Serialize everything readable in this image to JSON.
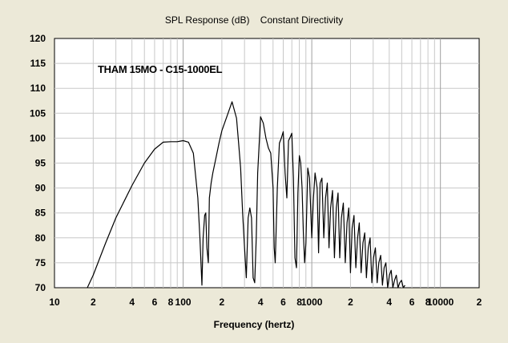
{
  "chart_data": {
    "type": "line",
    "title": "SPL Response (dB)    Constant Directivity",
    "annotation": "THAM 15MO - C15-1000EL",
    "xlabel": "Frequency (hertz)",
    "ylabel": "",
    "x_scale": "log",
    "xlim": [
      10,
      20000
    ],
    "ylim": [
      70,
      120
    ],
    "grid": true,
    "legend": "none",
    "x_tick_labels": [
      {
        "value": 10,
        "label": "10"
      },
      {
        "value": 20,
        "label": "2"
      },
      {
        "value": 40,
        "label": "4"
      },
      {
        "value": 60,
        "label": "6"
      },
      {
        "value": 80,
        "label": "8"
      },
      {
        "value": 100,
        "label": "100"
      },
      {
        "value": 200,
        "label": "2"
      },
      {
        "value": 400,
        "label": "4"
      },
      {
        "value": 600,
        "label": "6"
      },
      {
        "value": 800,
        "label": "8"
      },
      {
        "value": 1000,
        "label": "1000"
      },
      {
        "value": 2000,
        "label": "2"
      },
      {
        "value": 4000,
        "label": "4"
      },
      {
        "value": 6000,
        "label": "6"
      },
      {
        "value": 8000,
        "label": "8"
      },
      {
        "value": 10000,
        "label": "10000"
      },
      {
        "value": 20000,
        "label": "2"
      }
    ],
    "y_ticks": [
      70,
      75,
      80,
      85,
      90,
      95,
      100,
      105,
      110,
      115,
      120
    ],
    "colors": {
      "background": "#ece9d8",
      "plot_area": "#ffffff",
      "line": "#000000",
      "grid": "#c8c8c8"
    },
    "series": [
      {
        "name": "",
        "x": [
          18,
          20,
          25,
          30,
          35,
          40,
          50,
          60,
          70,
          80,
          90,
          95,
          100,
          110,
          120,
          130,
          135,
          140,
          143,
          147,
          150,
          153,
          157,
          160,
          165,
          170,
          180,
          190,
          200,
          220,
          240,
          260,
          270,
          280,
          290,
          300,
          310,
          320,
          330,
          340,
          350,
          360,
          370,
          380,
          400,
          420,
          440,
          460,
          480,
          500,
          510,
          520,
          540,
          560,
          580,
          600,
          620,
          640,
          660,
          680,
          700,
          720,
          740,
          760,
          780,
          800,
          820,
          840,
          860,
          880,
          900,
          930,
          960,
          1000,
          1030,
          1060,
          1100,
          1130,
          1160,
          1200,
          1240,
          1280,
          1320,
          1360,
          1400,
          1450,
          1500,
          1550,
          1600,
          1650,
          1700,
          1760,
          1820,
          1880,
          1940,
          2000,
          2060,
          2130,
          2200,
          2270,
          2340,
          2420,
          2500,
          2580,
          2660,
          2750,
          2840,
          2930,
          3020,
          3120,
          3220,
          3320,
          3430,
          3540,
          3650,
          3770,
          3890,
          4010,
          4140,
          4270,
          4400,
          4540,
          4680,
          4830,
          4980,
          5140,
          5300
        ],
        "values": [
          70,
          72.5,
          79,
          84,
          87.5,
          90.5,
          95,
          97.8,
          99.2,
          99.3,
          99.3,
          99.4,
          99.5,
          99.2,
          97,
          88,
          80,
          70.5,
          80,
          84.5,
          85,
          78,
          75,
          88,
          91,
          93,
          96,
          99,
          101.5,
          104.5,
          107.3,
          104,
          99,
          94,
          85,
          78,
          72,
          84,
          86,
          84,
          72,
          71,
          80,
          93,
          104.3,
          103,
          100,
          98,
          97,
          90,
          78,
          75,
          90,
          99,
          100,
          101.3,
          93,
          88,
          99.5,
          100.2,
          101,
          92,
          76,
          74,
          89,
          96.5,
          95,
          90,
          81,
          75,
          79,
          94,
          92,
          80,
          88,
          93,
          90,
          77,
          91,
          92,
          80,
          88,
          91,
          78,
          86,
          89.5,
          76,
          86,
          89,
          76,
          84,
          87,
          75,
          83,
          86,
          73,
          82,
          84.5,
          74,
          80,
          83,
          73,
          79,
          81,
          72,
          78,
          80,
          71,
          76,
          78,
          71,
          75,
          76.5,
          70.5,
          74,
          75,
          70,
          72.5,
          73.5,
          70,
          71.5,
          72.5,
          70,
          71,
          71.5,
          70,
          70.5
        ]
      }
    ]
  }
}
